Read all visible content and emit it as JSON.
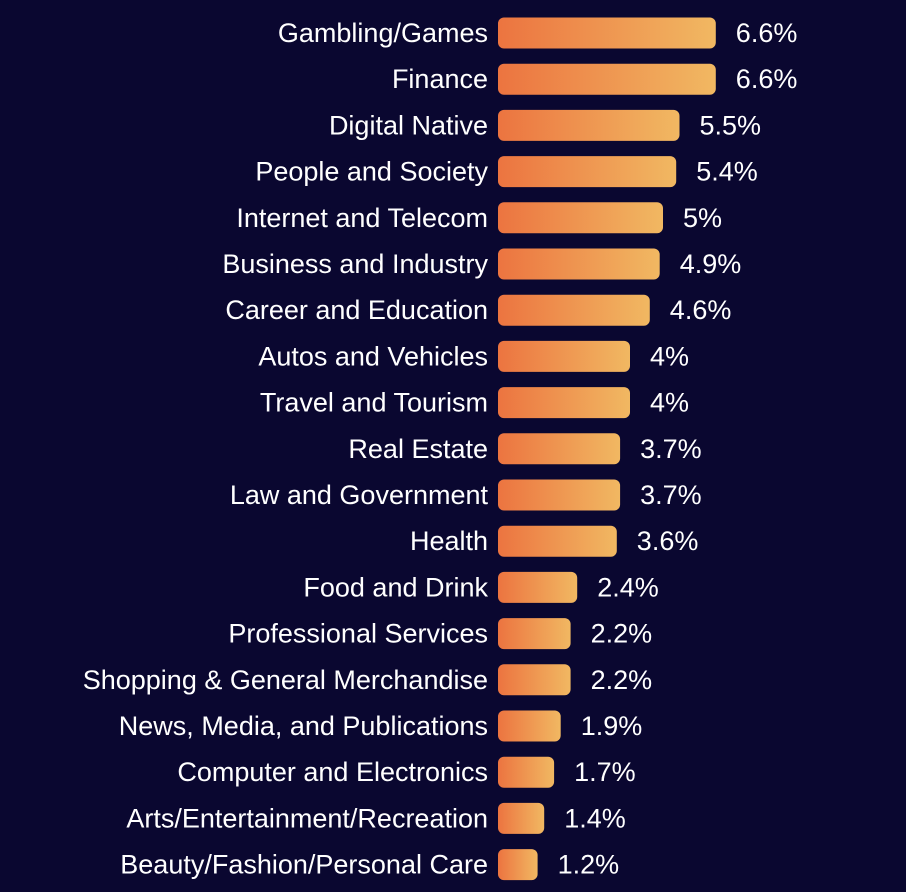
{
  "chart_data": {
    "type": "bar",
    "orientation": "horizontal",
    "categories": [
      "Gambling/Games",
      "Finance",
      "Digital Native",
      "People and Society",
      "Internet and Telecom",
      "Business and Industry",
      "Career and Education",
      "Autos and Vehicles",
      "Travel and Tourism",
      "Real Estate",
      "Law and Government",
      "Health",
      "Food and Drink",
      "Professional Services",
      "Shopping & General Merchandise",
      "News, Media, and Publications",
      "Computer and Electronics",
      "Arts/Entertainment/Recreation",
      "Beauty/Fashion/Personal Care"
    ],
    "values": [
      6.6,
      6.6,
      5.5,
      5.4,
      5.0,
      4.9,
      4.6,
      4.0,
      4.0,
      3.7,
      3.7,
      3.6,
      2.4,
      2.2,
      2.2,
      1.9,
      1.7,
      1.4,
      1.2
    ],
    "value_labels": [
      "6.6%",
      "6.6%",
      "5.5%",
      "5.4%",
      "5%",
      "4.9%",
      "4.6%",
      "4%",
      "4%",
      "3.7%",
      "3.7%",
      "3.6%",
      "2.4%",
      "2.2%",
      "2.2%",
      "1.9%",
      "1.7%",
      "1.4%",
      "1.2%"
    ],
    "title": "",
    "xlabel": "",
    "ylabel": "",
    "xlim": [
      0,
      7
    ],
    "grid": false,
    "legend": "none",
    "colors": {
      "background": "#0a0730",
      "bar_start": "#ec7440",
      "bar_end": "#f1b862",
      "text": "#ffffff"
    }
  }
}
